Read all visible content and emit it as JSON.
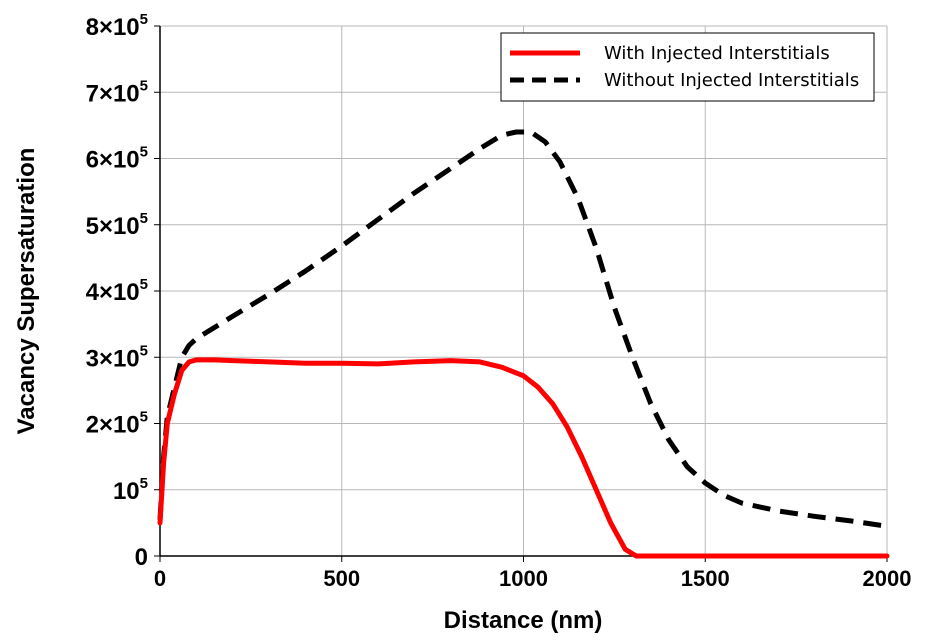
{
  "chart_data": {
    "type": "line",
    "xlabel": "Distance (nm)",
    "ylabel": "Vacancy Supersaturation",
    "xlim": [
      0,
      2000
    ],
    "ylim": [
      0,
      800000
    ],
    "x_ticks": [
      0,
      500,
      1000,
      1500,
      2000
    ],
    "x_tick_labels": [
      "0",
      "500",
      "1000",
      "1500",
      "2000"
    ],
    "y_ticks": [
      0,
      100000,
      200000,
      300000,
      400000,
      500000,
      600000,
      700000,
      800000
    ],
    "y_tick_labels": [
      {
        "base": "0",
        "exp": ""
      },
      {
        "base": "10",
        "exp": "5"
      },
      {
        "base": "2×10",
        "exp": "5"
      },
      {
        "base": "3×10",
        "exp": "5"
      },
      {
        "base": "4×10",
        "exp": "5"
      },
      {
        "base": "5×10",
        "exp": "5"
      },
      {
        "base": "6×10",
        "exp": "5"
      },
      {
        "base": "7×10",
        "exp": "5"
      },
      {
        "base": "8×10",
        "exp": "5"
      }
    ],
    "grid": true,
    "legend_position": "top-right",
    "series": [
      {
        "name": "With Injected Interstitials",
        "color": "#ff0000",
        "style": "solid",
        "points": [
          [
            0,
            50000
          ],
          [
            10,
            140000
          ],
          [
            20,
            200000
          ],
          [
            40,
            245000
          ],
          [
            60,
            280000
          ],
          [
            80,
            293000
          ],
          [
            100,
            296000
          ],
          [
            150,
            296000
          ],
          [
            200,
            295000
          ],
          [
            300,
            293000
          ],
          [
            400,
            291000
          ],
          [
            500,
            291000
          ],
          [
            600,
            290000
          ],
          [
            700,
            293000
          ],
          [
            800,
            295000
          ],
          [
            880,
            293000
          ],
          [
            940,
            285000
          ],
          [
            1000,
            272000
          ],
          [
            1040,
            255000
          ],
          [
            1080,
            230000
          ],
          [
            1120,
            195000
          ],
          [
            1160,
            150000
          ],
          [
            1200,
            100000
          ],
          [
            1240,
            50000
          ],
          [
            1280,
            10000
          ],
          [
            1310,
            0
          ],
          [
            1500,
            0
          ],
          [
            1700,
            0
          ],
          [
            2000,
            0
          ]
        ]
      },
      {
        "name": "Without Injected Interstitials",
        "color": "#000000",
        "style": "dashed",
        "points": [
          [
            0,
            55000
          ],
          [
            10,
            150000
          ],
          [
            20,
            210000
          ],
          [
            40,
            255000
          ],
          [
            60,
            300000
          ],
          [
            80,
            318000
          ],
          [
            100,
            328000
          ],
          [
            200,
            362000
          ],
          [
            300,
            395000
          ],
          [
            400,
            430000
          ],
          [
            500,
            468000
          ],
          [
            600,
            508000
          ],
          [
            700,
            548000
          ],
          [
            800,
            585000
          ],
          [
            880,
            615000
          ],
          [
            940,
            635000
          ],
          [
            980,
            640000
          ],
          [
            1020,
            640000
          ],
          [
            1060,
            625000
          ],
          [
            1100,
            595000
          ],
          [
            1150,
            540000
          ],
          [
            1200,
            465000
          ],
          [
            1250,
            375000
          ],
          [
            1300,
            300000
          ],
          [
            1350,
            230000
          ],
          [
            1400,
            175000
          ],
          [
            1450,
            135000
          ],
          [
            1500,
            110000
          ],
          [
            1550,
            92000
          ],
          [
            1600,
            80000
          ],
          [
            1700,
            68000
          ],
          [
            1800,
            60000
          ],
          [
            1900,
            53000
          ],
          [
            2000,
            45000
          ]
        ]
      }
    ]
  }
}
